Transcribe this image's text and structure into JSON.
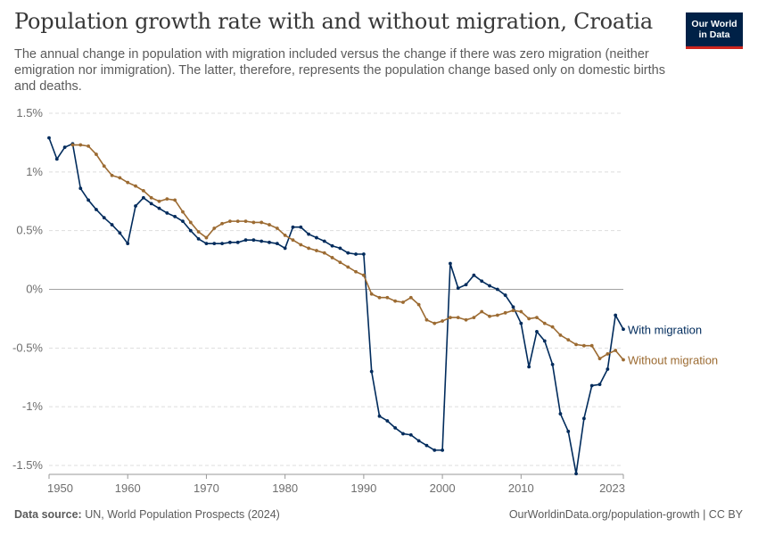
{
  "title": "Population growth rate with and without migration, Croatia",
  "subtitle": "The annual change in population with migration included versus the change if there was zero migration (neither emigration nor immigration). The latter, therefore, represents the population change based only on domestic births and deaths.",
  "logo": {
    "line1": "Our World",
    "line2": "in Data"
  },
  "footer": {
    "source_label": "Data source:",
    "source_text": " UN, World Population Prospects (2024)",
    "right": "OurWorldinData.org/population-growth | CC BY"
  },
  "colors": {
    "with_migration": "#002b5c",
    "without_migration": "#9c6b32",
    "grid": "#dddddd",
    "zero_line": "#a3a3a3"
  },
  "chart_data": {
    "type": "line",
    "title": "Population growth rate with and without migration, Croatia",
    "y_ticks": [
      {
        "value": 1.5,
        "label": "1.5%"
      },
      {
        "value": 1.0,
        "label": "1%"
      },
      {
        "value": 0.5,
        "label": "0.5%"
      },
      {
        "value": 0.0,
        "label": "0%"
      },
      {
        "value": -0.5,
        "label": "-0.5%"
      },
      {
        "value": -1.0,
        "label": "-1%"
      },
      {
        "value": -1.5,
        "label": "-1.5%"
      }
    ],
    "x_ticks": [
      1950,
      1960,
      1970,
      1980,
      1990,
      2000,
      2010,
      2023
    ],
    "xlim": [
      1950,
      2023
    ],
    "ylim": [
      -1.5,
      1.5
    ],
    "grid": "horizontal dashed",
    "legend": "labels at line ends",
    "series": [
      {
        "name": "With migration",
        "color": "#002b5c",
        "x": [
          1950,
          1951,
          1952,
          1953,
          1954,
          1955,
          1956,
          1957,
          1958,
          1959,
          1960,
          1961,
          1962,
          1963,
          1964,
          1965,
          1966,
          1967,
          1968,
          1969,
          1970,
          1971,
          1972,
          1973,
          1974,
          1975,
          1976,
          1977,
          1978,
          1979,
          1980,
          1981,
          1982,
          1983,
          1984,
          1985,
          1986,
          1987,
          1988,
          1989,
          1990,
          1991,
          1992,
          1993,
          1994,
          1995,
          1996,
          1997,
          1998,
          1999,
          2000,
          2001,
          2002,
          2003,
          2004,
          2005,
          2006,
          2007,
          2008,
          2009,
          2010,
          2011,
          2012,
          2013,
          2014,
          2015,
          2016,
          2017,
          2018,
          2019,
          2020,
          2021,
          2022,
          2023
        ],
        "values": [
          1.29,
          1.11,
          1.21,
          1.24,
          0.86,
          0.76,
          0.68,
          0.61,
          0.55,
          0.48,
          0.39,
          0.71,
          0.78,
          0.73,
          0.69,
          0.65,
          0.62,
          0.58,
          0.5,
          0.43,
          0.39,
          0.39,
          0.39,
          0.4,
          0.4,
          0.42,
          0.42,
          0.41,
          0.4,
          0.39,
          0.35,
          0.53,
          0.53,
          0.47,
          0.44,
          0.41,
          0.37,
          0.35,
          0.31,
          0.3,
          0.3,
          -0.7,
          -1.08,
          -1.12,
          -1.18,
          -1.23,
          -1.24,
          -1.29,
          -1.33,
          -1.37,
          -1.37,
          0.22,
          0.01,
          0.04,
          0.12,
          0.07,
          0.03,
          0.0,
          -0.05,
          -0.15,
          -0.29,
          -0.66,
          -0.36,
          -0.44,
          -0.64,
          -1.06,
          -1.21,
          -1.57,
          -1.1,
          -0.82,
          -0.81,
          -0.68,
          -0.22,
          -0.34
        ]
      },
      {
        "name": "Without migration",
        "color": "#9c6b32",
        "x": [
          1953,
          1954,
          1955,
          1956,
          1957,
          1958,
          1959,
          1960,
          1961,
          1962,
          1963,
          1964,
          1965,
          1966,
          1967,
          1968,
          1969,
          1970,
          1971,
          1972,
          1973,
          1974,
          1975,
          1976,
          1977,
          1978,
          1979,
          1980,
          1981,
          1982,
          1983,
          1984,
          1985,
          1986,
          1987,
          1988,
          1989,
          1990,
          1991,
          1992,
          1993,
          1994,
          1995,
          1996,
          1997,
          1998,
          1999,
          2000,
          2001,
          2002,
          2003,
          2004,
          2005,
          2006,
          2007,
          2008,
          2009,
          2010,
          2011,
          2012,
          2013,
          2014,
          2015,
          2016,
          2017,
          2018,
          2019,
          2020,
          2021,
          2022,
          2023
        ],
        "values": [
          1.23,
          1.23,
          1.22,
          1.15,
          1.05,
          0.97,
          0.95,
          0.91,
          0.88,
          0.84,
          0.78,
          0.75,
          0.77,
          0.76,
          0.66,
          0.57,
          0.49,
          0.44,
          0.52,
          0.56,
          0.58,
          0.58,
          0.58,
          0.57,
          0.57,
          0.55,
          0.52,
          0.46,
          0.42,
          0.38,
          0.35,
          0.33,
          0.31,
          0.27,
          0.23,
          0.19,
          0.15,
          0.12,
          -0.04,
          -0.07,
          -0.07,
          -0.1,
          -0.11,
          -0.07,
          -0.13,
          -0.26,
          -0.29,
          -0.27,
          -0.24,
          -0.24,
          -0.26,
          -0.24,
          -0.19,
          -0.23,
          -0.22,
          -0.2,
          -0.18,
          -0.19,
          -0.25,
          -0.24,
          -0.29,
          -0.32,
          -0.39,
          -0.43,
          -0.47,
          -0.48,
          -0.48,
          -0.59,
          -0.55,
          -0.52,
          -0.6
        ]
      }
    ]
  }
}
